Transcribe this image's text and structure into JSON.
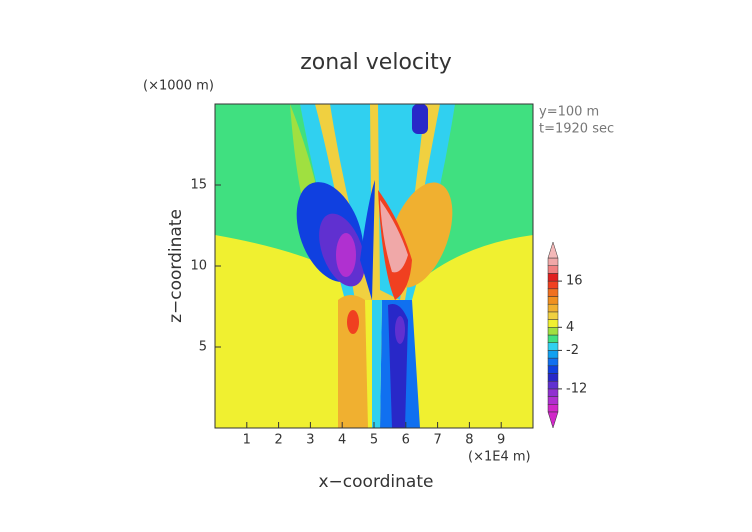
{
  "chart_data": {
    "type": "contour",
    "title": "zonal velocity",
    "y_unit_label": "(×1000 m)",
    "x_unit_label": "(×1E4 m)",
    "annotations": [
      "y=100 m",
      "t=1920 sec"
    ],
    "xlabel": "x−coordinate",
    "ylabel": "z−coordinate",
    "xlim": [
      0,
      10
    ],
    "ylim": [
      0,
      20
    ],
    "xticks": [
      1,
      2,
      3,
      4,
      5,
      6,
      7,
      8,
      9
    ],
    "yticks": [
      5,
      10,
      15
    ],
    "colorbar": {
      "levels": [
        -18,
        -16,
        -14,
        -12,
        -10,
        -8,
        -6,
        -4,
        -2,
        0,
        2,
        4,
        6,
        8,
        10,
        12,
        14,
        16,
        18,
        20,
        22
      ],
      "colors": [
        "#d028c8",
        "#b030d0",
        "#9030d0",
        "#6030d0",
        "#2828c8",
        "#1040e0",
        "#1070f0",
        "#10a0f0",
        "#30d0f0",
        "#40e080",
        "#a0e040",
        "#f0f030",
        "#f0d040",
        "#f0b030",
        "#f09020",
        "#f07020",
        "#f04020",
        "#e02020",
        "#f08080",
        "#f0a8a8"
      ],
      "under_color": "#d028c8",
      "over_color": "#f4b8b8",
      "ticks": [
        16,
        4,
        -2,
        -12
      ]
    }
  }
}
